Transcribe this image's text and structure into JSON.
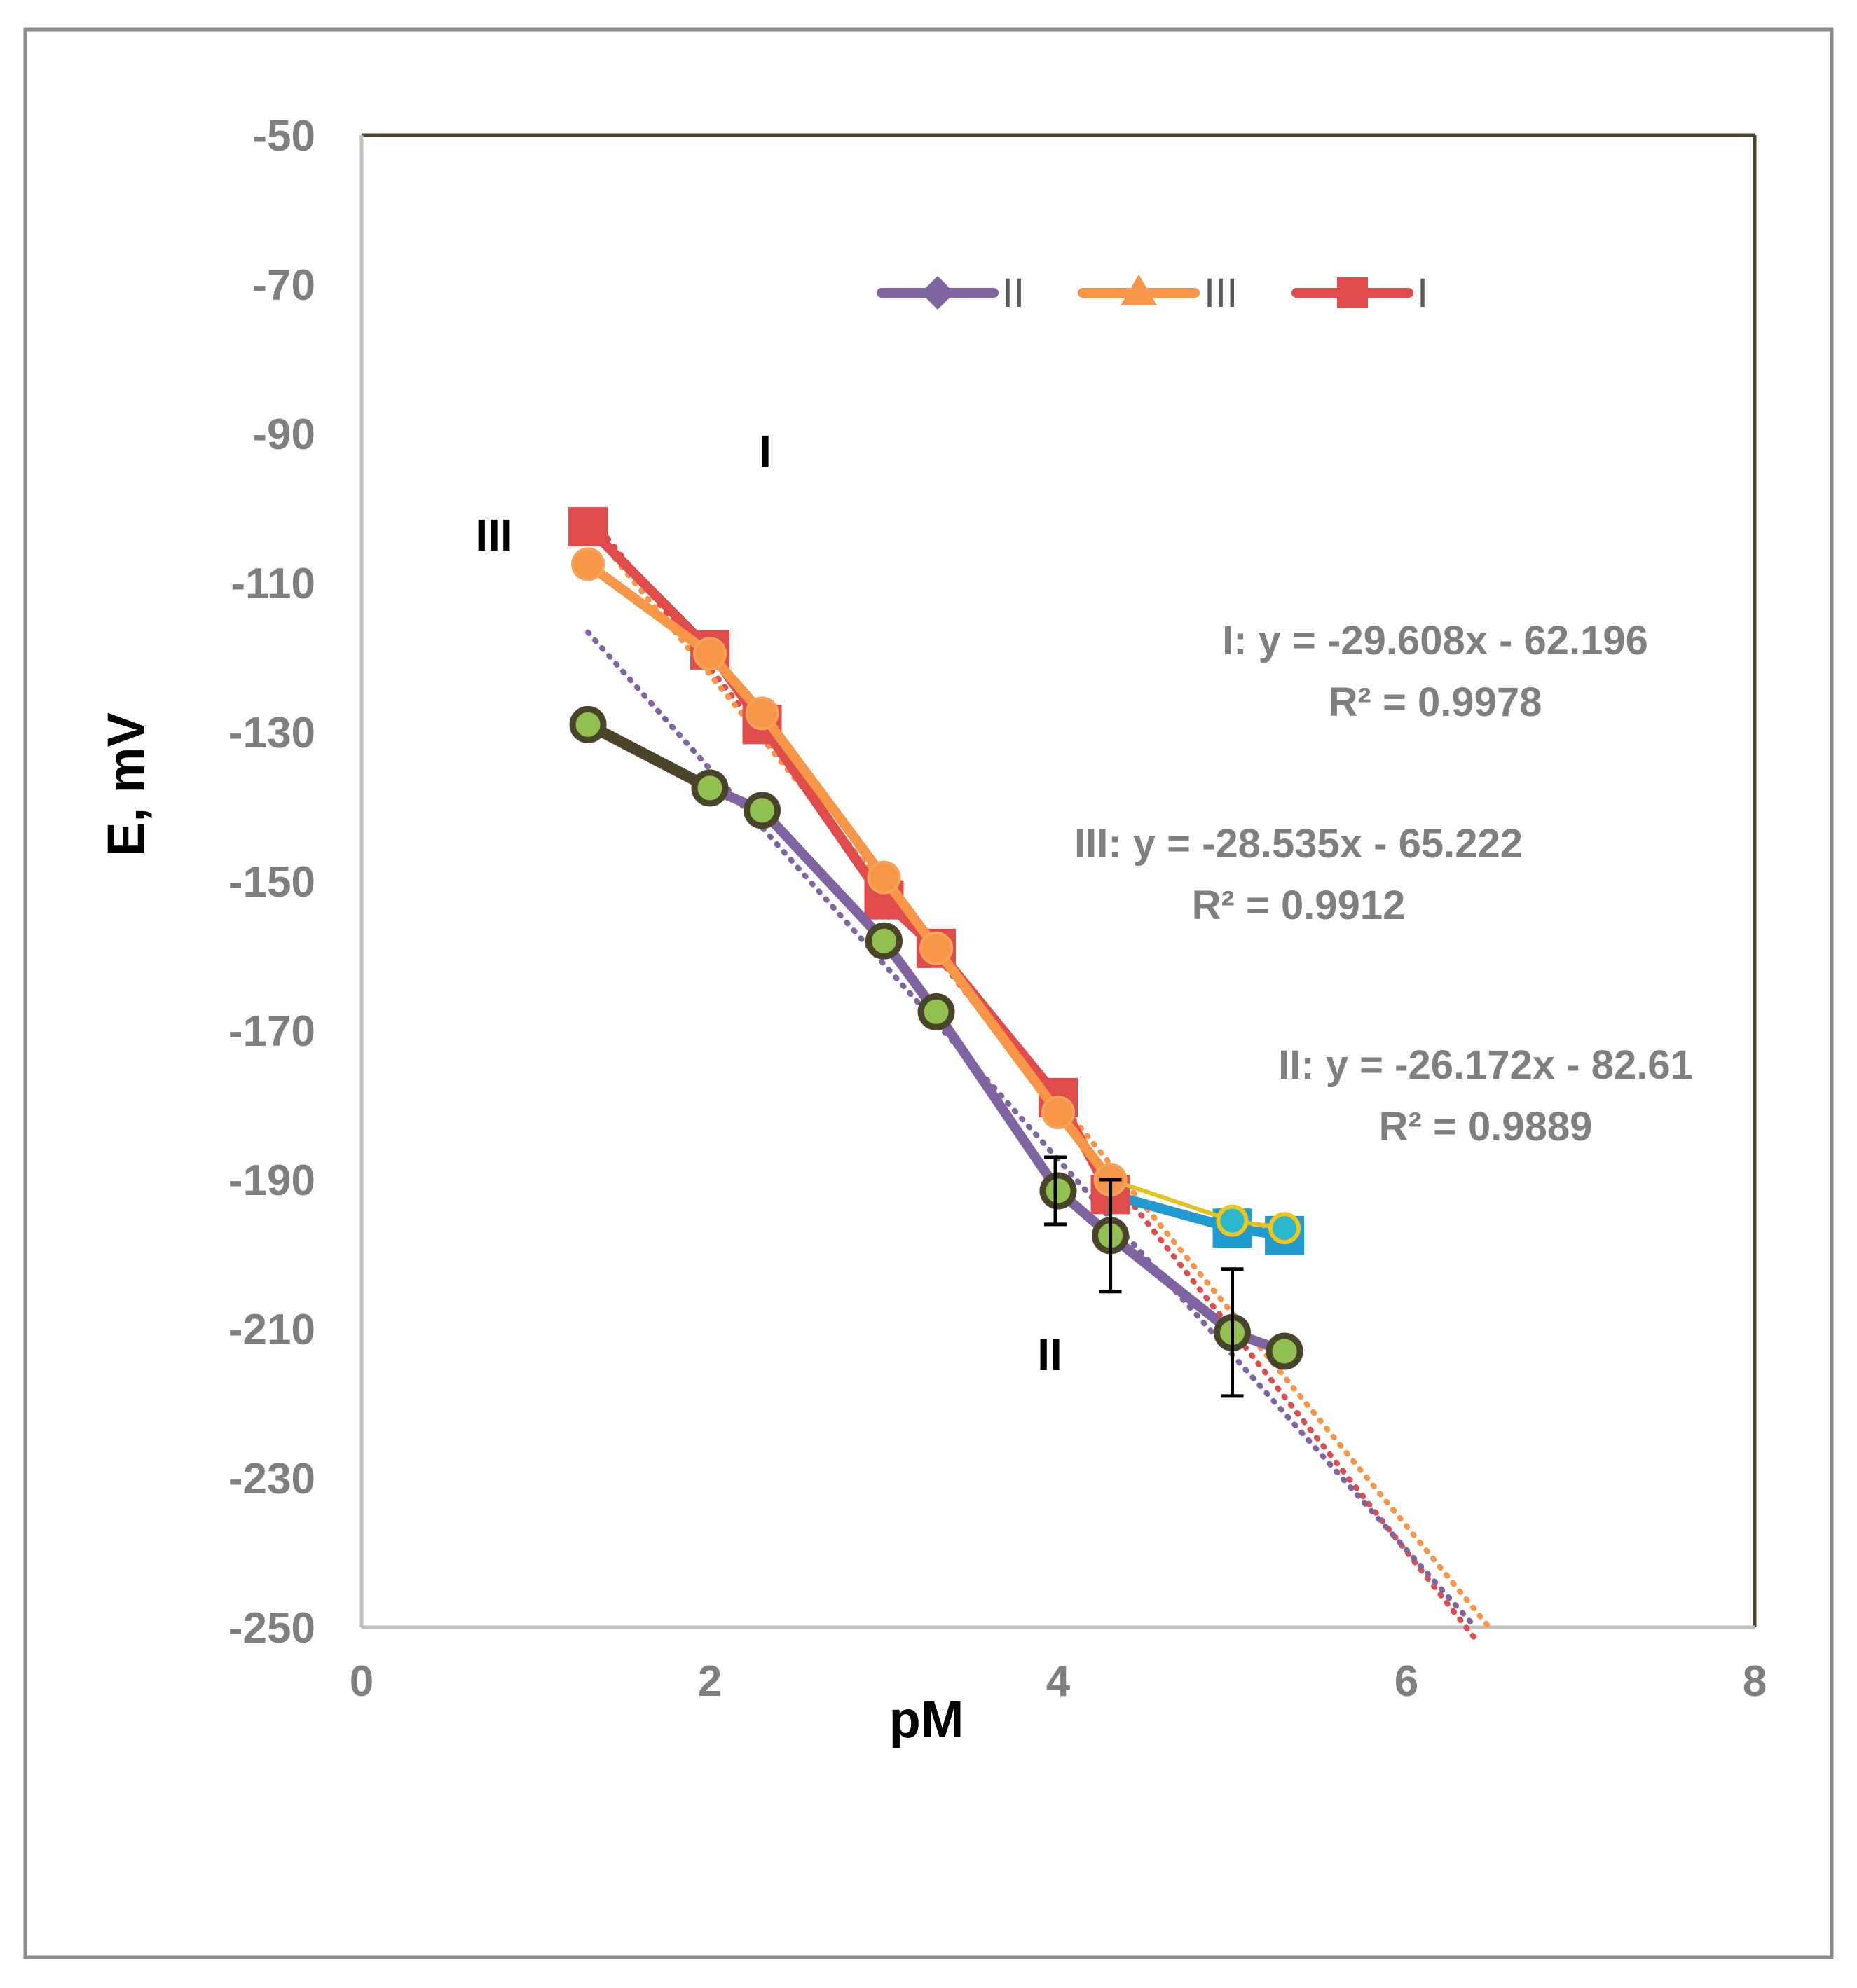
{
  "chart_data": {
    "type": "line",
    "title": "",
    "xlabel": "pM",
    "ylabel": "E, mV",
    "xlim": [
      0,
      8
    ],
    "ylim": [
      -250,
      -50
    ],
    "xticks": [
      0,
      2,
      4,
      6,
      8
    ],
    "yticks": [
      -50,
      -70,
      -90,
      -110,
      -130,
      -150,
      -170,
      -190,
      -210,
      -230,
      -250
    ],
    "grid": false,
    "legend_position": "top-center",
    "colors": {
      "I": "#e04b4b",
      "II": "#8064a2",
      "III": "#f79646",
      "II_marker_fill": "#92c050",
      "II_first_segment": "#4a452a",
      "plateau_line": "#1f9bcf",
      "plateau_marker": "#2bb8cc",
      "plot_border": "#4a452a",
      "frame": "#7f7f7f",
      "errorbar": "#000000"
    },
    "legend": [
      {
        "key": "II",
        "label": "II",
        "marker": "diamond"
      },
      {
        "key": "III",
        "label": "III",
        "marker": "triangle"
      },
      {
        "key": "I",
        "label": "I",
        "marker": "square"
      }
    ],
    "series": [
      {
        "name": "I",
        "x": [
          1.3,
          2.0,
          2.3,
          3.0,
          3.3,
          4.0,
          4.3,
          5.0,
          5.3
        ],
        "y": [
          -102.5,
          -119.0,
          -129.0,
          -152.5,
          -159.0,
          -179.0,
          -192.0,
          -196.5,
          -197.5
        ]
      },
      {
        "name": "III",
        "x": [
          1.3,
          2.0,
          2.3,
          3.0,
          3.3,
          4.0,
          4.3,
          5.0,
          5.3
        ],
        "y": [
          -107.5,
          -119.5,
          -127.5,
          -149.5,
          -159.0,
          -181.0,
          -190.0,
          -195.5,
          -196.5
        ]
      },
      {
        "name": "II",
        "x": [
          1.3,
          2.0,
          2.3,
          3.0,
          3.3,
          4.0,
          4.3,
          5.0,
          5.3
        ],
        "y": [
          -129.0,
          -137.5,
          -140.5,
          -158.0,
          -167.5,
          -191.5,
          -197.5,
          -210.5,
          -213.0
        ],
        "error": [
          0,
          0,
          0,
          0,
          0,
          4.5,
          7.5,
          8.5,
          0
        ]
      }
    ],
    "trendlines": [
      {
        "series": "I",
        "slope": -29.608,
        "intercept": -62.196,
        "x_from": 1.3,
        "x_to": 6.4
      },
      {
        "series": "III",
        "slope": -28.535,
        "intercept": -65.222,
        "x_from": 1.3,
        "x_to": 6.48
      },
      {
        "series": "II",
        "slope": -26.172,
        "intercept": -82.61,
        "x_from": 1.3,
        "x_to": 6.4
      }
    ],
    "annotations": [
      {
        "key": "I",
        "line1": "I: y = -29.608x - 62.196",
        "line2": "R² = 0.9978"
      },
      {
        "key": "III",
        "line1": "III: y = -28.535x - 65.222",
        "line2": "R² = 0.9912"
      },
      {
        "key": "II",
        "line1": "II: y = -26.172x - 82.61",
        "line2": "R² = 0.9889"
      }
    ],
    "curve_labels": [
      "III",
      "I",
      "II"
    ]
  }
}
